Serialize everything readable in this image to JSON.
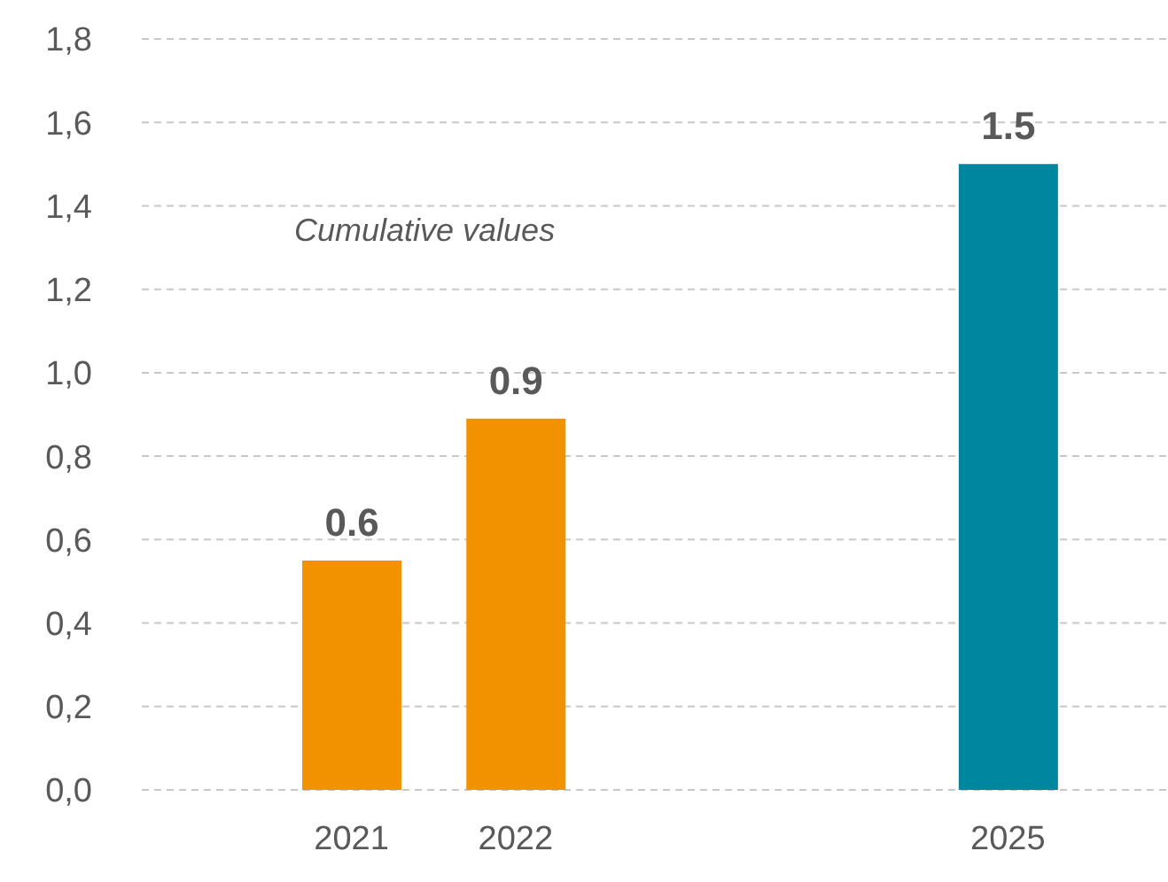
{
  "chart_data": {
    "type": "bar",
    "categories": [
      "2021",
      "2022",
      null,
      null,
      "2025"
    ],
    "values": [
      0.55,
      0.89,
      null,
      null,
      1.5
    ],
    "colors": [
      "#f39200",
      "#f39200",
      null,
      null,
      "#00869e"
    ],
    "value_labels": [
      "0.6",
      "0.9",
      null,
      null,
      "1.5"
    ],
    "ylim": [
      0,
      1.8
    ],
    "yticks": [
      {
        "value": 0,
        "label": "0,0"
      },
      {
        "value": 0.2,
        "label": "0,2"
      },
      {
        "value": 0.4,
        "label": "0,4"
      },
      {
        "value": 0.6,
        "label": "0,6"
      },
      {
        "value": 0.8,
        "label": "0,8"
      },
      {
        "value": 1,
        "label": "1,0"
      },
      {
        "value": 1.2,
        "label": "1,2"
      },
      {
        "value": 1.4,
        "label": "1,4"
      },
      {
        "value": 1.6,
        "label": "1,6"
      },
      {
        "value": 1.8,
        "label": "1,8"
      }
    ],
    "grid": "y",
    "annotations": [
      "Cumulative values"
    ]
  }
}
